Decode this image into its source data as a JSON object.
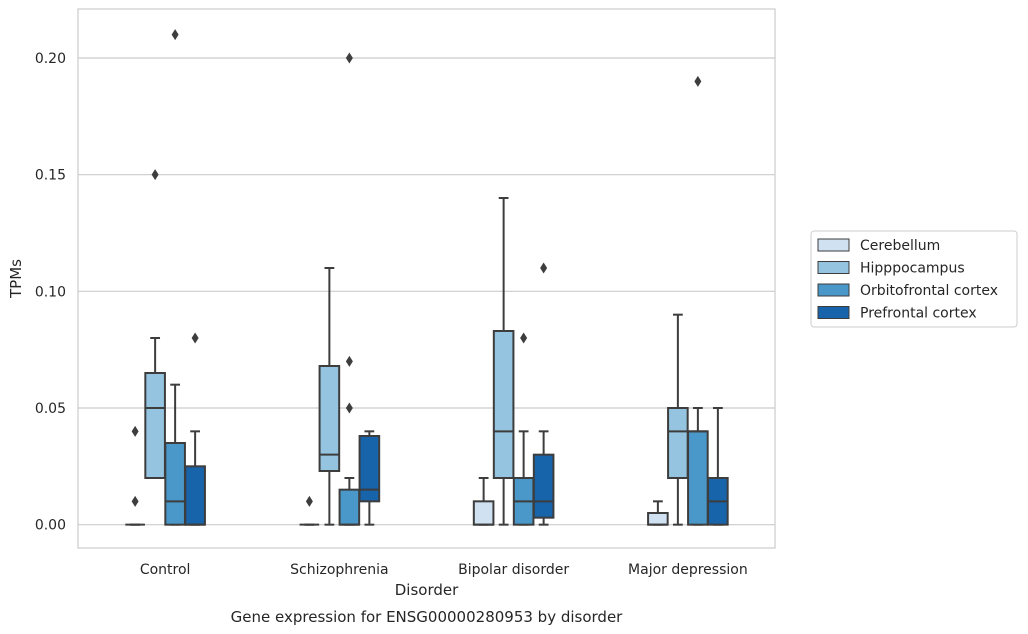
{
  "caption": "Gene expression for ENSG00000280953 by disorder",
  "chart_data": {
    "type": "box",
    "xlabel": "Disorder",
    "ylabel": "TPMs",
    "ylim": [
      -0.01,
      0.221
    ],
    "yticks": [
      0.0,
      0.05,
      0.1,
      0.15,
      0.2
    ],
    "ytick_labels": [
      "0.00",
      "0.05",
      "0.10",
      "0.15",
      "0.20"
    ],
    "grid": true,
    "legend_position": "right",
    "categories": [
      "Control",
      "Schizophrenia",
      "Bipolar disorder",
      "Major depression"
    ],
    "series": [
      {
        "name": "Cerebellum",
        "color": "#d0e1f2",
        "boxes": [
          {
            "whislo": 0.0,
            "q1": 0.0,
            "med": 0.0,
            "q3": 0.0,
            "whishi": 0.0,
            "fliers": [
              0.01,
              0.04
            ]
          },
          {
            "whislo": 0.0,
            "q1": 0.0,
            "med": 0.0,
            "q3": 0.0,
            "whishi": 0.0,
            "fliers": [
              0.01
            ]
          },
          {
            "whislo": 0.0,
            "q1": 0.0,
            "med": 0.0,
            "q3": 0.01,
            "whishi": 0.02,
            "fliers": []
          },
          {
            "whislo": 0.0,
            "q1": 0.0,
            "med": 0.0,
            "q3": 0.005,
            "whishi": 0.01,
            "fliers": []
          }
        ]
      },
      {
        "name": "Hipppocampus",
        "color": "#94c4df",
        "boxes": [
          {
            "whislo": 0.02,
            "q1": 0.02,
            "med": 0.05,
            "q3": 0.065,
            "whishi": 0.08,
            "fliers": [
              0.15
            ]
          },
          {
            "whislo": 0.0,
            "q1": 0.023,
            "med": 0.03,
            "q3": 0.068,
            "whishi": 0.11,
            "fliers": []
          },
          {
            "whislo": 0.0,
            "q1": 0.02,
            "med": 0.04,
            "q3": 0.083,
            "whishi": 0.14,
            "fliers": []
          },
          {
            "whislo": 0.0,
            "q1": 0.02,
            "med": 0.04,
            "q3": 0.05,
            "whishi": 0.09,
            "fliers": []
          }
        ]
      },
      {
        "name": "Orbitofrontal cortex",
        "color": "#4a98c9",
        "boxes": [
          {
            "whislo": 0.0,
            "q1": 0.0,
            "med": 0.01,
            "q3": 0.035,
            "whishi": 0.06,
            "fliers": [
              0.21
            ]
          },
          {
            "whislo": 0.0,
            "q1": 0.0,
            "med": 0.0,
            "q3": 0.015,
            "whishi": 0.02,
            "fliers": [
              0.05,
              0.07,
              0.2
            ]
          },
          {
            "whislo": 0.0,
            "q1": 0.0,
            "med": 0.01,
            "q3": 0.02,
            "whishi": 0.04,
            "fliers": [
              0.08
            ]
          },
          {
            "whislo": 0.0,
            "q1": 0.0,
            "med": 0.04,
            "q3": 0.04,
            "whishi": 0.05,
            "fliers": [
              0.19
            ]
          }
        ]
      },
      {
        "name": "Prefrontal cortex",
        "color": "#1764ab",
        "boxes": [
          {
            "whislo": 0.0,
            "q1": 0.0,
            "med": 0.0,
            "q3": 0.025,
            "whishi": 0.04,
            "fliers": [
              0.08
            ]
          },
          {
            "whislo": 0.0,
            "q1": 0.01,
            "med": 0.015,
            "q3": 0.038,
            "whishi": 0.04,
            "fliers": []
          },
          {
            "whislo": 0.0,
            "q1": 0.003,
            "med": 0.01,
            "q3": 0.03,
            "whishi": 0.04,
            "fliers": [
              0.11
            ]
          },
          {
            "whislo": 0.0,
            "q1": 0.0,
            "med": 0.01,
            "q3": 0.02,
            "whishi": 0.05,
            "fliers": []
          }
        ]
      }
    ]
  }
}
